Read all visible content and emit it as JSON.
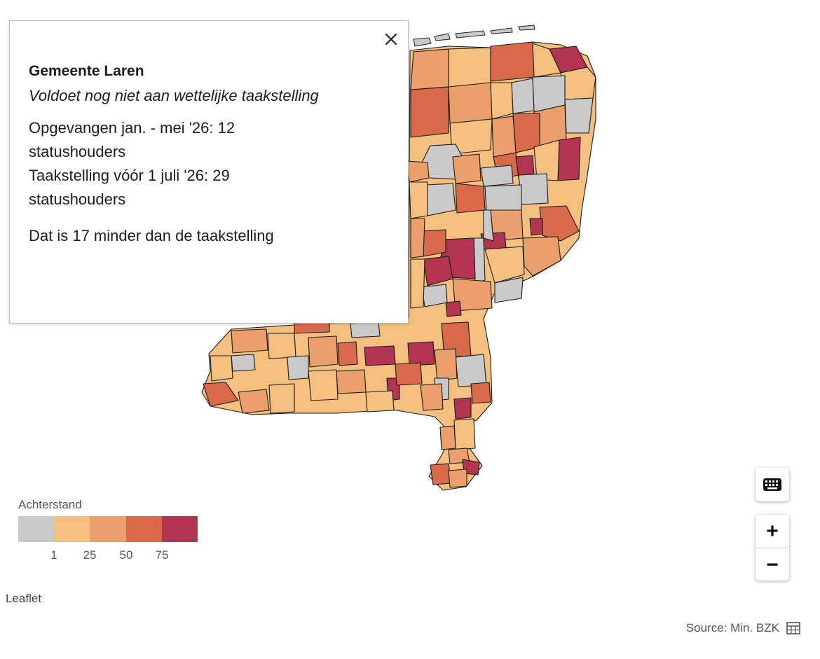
{
  "popup": {
    "title": "Gemeente Laren",
    "subtitle": "Voldoet nog niet aan wettelijke taakstelling",
    "line1": "Opgevangen jan. - mei '26: 12",
    "line2": "statushouders",
    "line3": "Taakstelling vóór 1 juli '26: 29",
    "line4": "statushouders",
    "line5": "Dat is 17 minder dan de taakstelling"
  },
  "legend": {
    "title": "Achterstand",
    "colors": [
      "#cacaca",
      "#f4c07f",
      "#eba06b",
      "#d9694b",
      "#b33450"
    ],
    "ticks": [
      "1",
      "25",
      "50",
      "75"
    ]
  },
  "controls": {
    "zoom_in": "+",
    "zoom_out": "−"
  },
  "attribution": "Leaflet",
  "source": "Source: Min. BZK",
  "icons": {
    "close": "close-icon",
    "keyboard": "keyboard-icon",
    "table": "table-icon"
  }
}
